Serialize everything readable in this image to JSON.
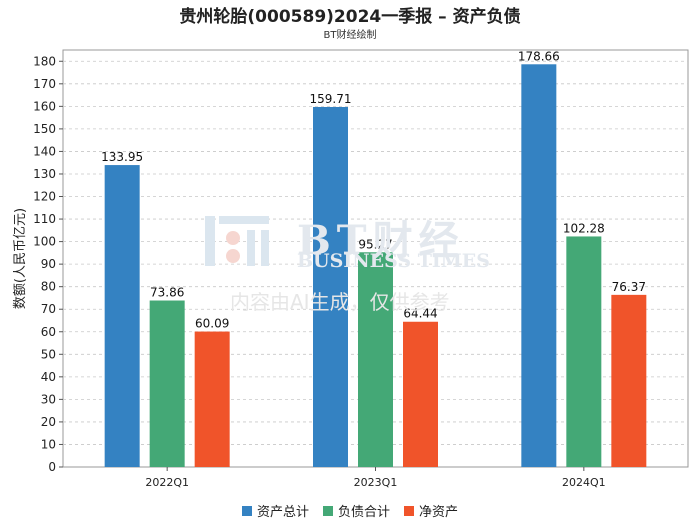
{
  "chart_data": {
    "type": "bar",
    "title": "贵州轮胎(000589)2024一季报 – 资产负债",
    "subtitle": "BT财经绘制",
    "ylabel": "数额(人民币亿元)",
    "xlabel": "",
    "categories": [
      "2022Q1",
      "2023Q1",
      "2024Q1"
    ],
    "ylim": [
      0,
      185
    ],
    "yticks": [
      0,
      10,
      20,
      30,
      40,
      50,
      60,
      70,
      80,
      90,
      100,
      110,
      120,
      130,
      140,
      150,
      160,
      170,
      180
    ],
    "grid": true,
    "legend_position": "bottom",
    "series": [
      {
        "name": "资产总计",
        "color": "#3482c2",
        "values": [
          133.95,
          159.71,
          178.66
        ],
        "labels": [
          "133.95",
          "159.71",
          "178.66"
        ]
      },
      {
        "name": "负债合计",
        "color": "#44a876",
        "values": [
          73.86,
          95.27,
          102.28
        ],
        "labels": [
          "73.86",
          "95.27",
          "102.28"
        ]
      },
      {
        "name": "净资产",
        "color": "#f0542a",
        "values": [
          60.09,
          64.44,
          76.37
        ],
        "labels": [
          "60.09",
          "64.44",
          "76.37"
        ]
      }
    ]
  },
  "watermark": {
    "brand": "BT财经",
    "brand_en": "BUSINESS TIMES",
    "note": "内容由AI生成，仅供参考"
  }
}
